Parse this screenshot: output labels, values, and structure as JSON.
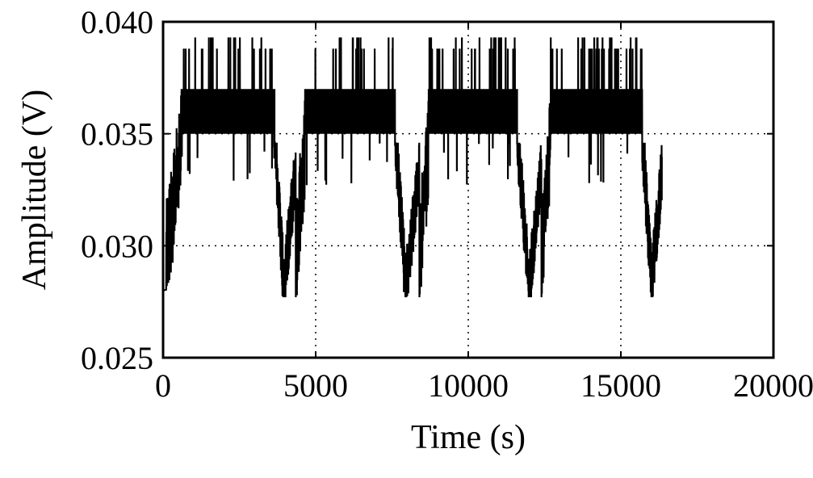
{
  "chart_data": {
    "type": "line",
    "title": "",
    "xlabel": "Time (s)",
    "ylabel": "Amplitude (V)",
    "xlim": [
      0,
      20000
    ],
    "ylim": [
      0.025,
      0.04
    ],
    "x_ticks": [
      0,
      5000,
      10000,
      15000,
      20000
    ],
    "x_tick_labels": [
      "0",
      "5000",
      "10000",
      "15000",
      "20000"
    ],
    "y_ticks": [
      0.025,
      0.03,
      0.035,
      0.04
    ],
    "y_tick_labels": [
      "0.025",
      "0.030",
      "0.035",
      "0.040"
    ],
    "grid": true,
    "grid_style": "dotted",
    "legend": "none",
    "line_color": "#000000",
    "signal": {
      "description_values": "quantized noisy amplitude, four plateau cycles",
      "x_end": 16350,
      "cycles": [
        {
          "x_start": 100,
          "rise_end": 600,
          "plateau_end": 3650,
          "dip_min_x": 3950,
          "dip_end": 4350
        },
        {
          "x_start": 4350,
          "rise_end": 4650,
          "plateau_end": 7600,
          "dip_min_x": 7950,
          "dip_end": 8400
        },
        {
          "x_start": 8400,
          "rise_end": 8700,
          "plateau_end": 11600,
          "dip_min_x": 12000,
          "dip_end": 12400
        },
        {
          "x_start": 12400,
          "rise_end": 12700,
          "plateau_end": 15700,
          "dip_min_x": 16000,
          "dip_end": 16350
        }
      ],
      "levels": [
        0.0277,
        0.03,
        0.0323,
        0.0346,
        0.035,
        0.036,
        0.037,
        0.0388,
        0.0393
      ],
      "plateau_low": 0.035,
      "plateau_high": 0.037,
      "plateau_spike": 0.0388,
      "dip_min": 0.0277,
      "start_value": 0.028
    }
  }
}
